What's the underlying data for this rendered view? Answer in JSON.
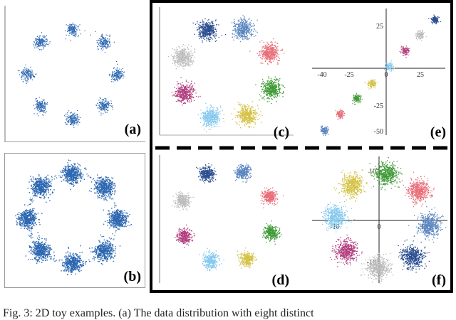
{
  "colors": {
    "base_blue": "#2c67b1",
    "palette": [
      "#2a4d8f",
      "#5b86c0",
      "#e86e78",
      "#3f9a37",
      "#d4c246",
      "#86c9ee",
      "#b23f7f",
      "#bcbcbc"
    ]
  },
  "panels": [
    {
      "id": "a",
      "label": "(a)"
    },
    {
      "id": "b",
      "label": "(b)"
    },
    {
      "id": "c",
      "label": "(c)"
    },
    {
      "id": "d",
      "label": "(d)"
    },
    {
      "id": "e",
      "label": "(e)"
    },
    {
      "id": "f",
      "label": "(f)"
    }
  ],
  "axes_e": {
    "x_ticks": [
      "-40",
      "-25",
      "0",
      "25"
    ],
    "y_ticks": [
      "25",
      "-25",
      "-50"
    ]
  },
  "axes_f": {
    "x_ticks": [
      "-10",
      "0",
      "10"
    ],
    "y_ticks": [
      "10",
      "-10"
    ]
  },
  "caption": "Fig. 3: 2D toy examples. (a) The data distribution with eight distinct"
}
